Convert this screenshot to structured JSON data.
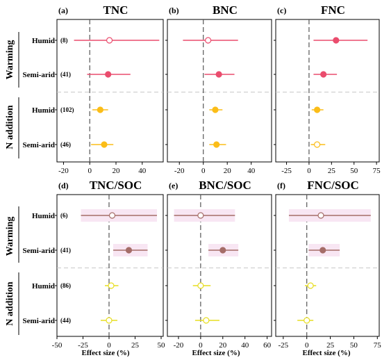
{
  "colors": {
    "warming": "#ea4c6d",
    "warming_ci": "#ea4c6d",
    "n_addition": "#fbbd18",
    "warming_soc": "#a56d68",
    "n_addition_soc": "#e7dd20",
    "shade_soc": "#f8e6f3",
    "divider": "#c8c8c8",
    "zero_line": "#555555"
  },
  "group_labels": [
    "Warming",
    "N addition"
  ],
  "row_labels": [
    "Humid",
    "Semi-arid",
    "Humid",
    "Semi-arid"
  ],
  "x_axis_title": "Effect size (%)",
  "chart_data": [
    {
      "id": "a",
      "letter": "(a)",
      "title": "TNC",
      "type": "forest",
      "xlim": [
        -25,
        56
      ],
      "xticks": [
        -20,
        0,
        20,
        40
      ],
      "n_labels": [
        "(8)",
        "(41)",
        "(102)",
        "(46)"
      ],
      "points": [
        {
          "group": "Warming",
          "climate": "Humid",
          "mean": 15,
          "lo": -12,
          "hi": 53,
          "filled": false
        },
        {
          "group": "Warming",
          "climate": "Semi-arid",
          "mean": 14,
          "lo": -2,
          "hi": 31,
          "filled": true
        },
        {
          "group": "N addition",
          "climate": "Humid",
          "mean": 8,
          "lo": 2,
          "hi": 14,
          "filled": true
        },
        {
          "group": "N addition",
          "climate": "Semi-arid",
          "mean": 11,
          "lo": 1,
          "hi": 18,
          "filled": true
        }
      ]
    },
    {
      "id": "b",
      "letter": "(b)",
      "title": "BNC",
      "type": "forest",
      "xlim": [
        -30,
        57
      ],
      "xticks": [
        -20,
        0,
        20,
        40
      ],
      "n_labels": [],
      "points": [
        {
          "group": "Warming",
          "climate": "Humid",
          "mean": 4,
          "lo": -17,
          "hi": 29,
          "filled": false
        },
        {
          "group": "Warming",
          "climate": "Semi-arid",
          "mean": 13,
          "lo": 1,
          "hi": 26,
          "filled": true
        },
        {
          "group": "N addition",
          "climate": "Humid",
          "mean": 10,
          "lo": 5,
          "hi": 16,
          "filled": true
        },
        {
          "group": "N addition",
          "climate": "Semi-arid",
          "mean": 11,
          "lo": 5,
          "hi": 19,
          "filled": true
        }
      ]
    },
    {
      "id": "c",
      "letter": "(c)",
      "title": "FNC",
      "type": "forest",
      "xlim": [
        -37,
        78
      ],
      "xticks": [
        -25,
        0,
        25,
        50,
        75
      ],
      "n_labels": [],
      "points": [
        {
          "group": "Warming",
          "climate": "Humid",
          "mean": 30,
          "lo": 5,
          "hi": 65,
          "filled": true
        },
        {
          "group": "Warming",
          "climate": "Semi-arid",
          "mean": 16,
          "lo": 5,
          "hi": 31,
          "filled": true
        },
        {
          "group": "N addition",
          "climate": "Humid",
          "mean": 9,
          "lo": 3,
          "hi": 16,
          "filled": true
        },
        {
          "group": "N addition",
          "climate": "Semi-arid",
          "mean": 9,
          "lo": 2,
          "hi": 18,
          "filled": false
        }
      ]
    },
    {
      "id": "d",
      "letter": "(d)",
      "title": "TNC/SOC",
      "type": "forest",
      "xlim": [
        -50,
        52
      ],
      "xticks": [
        -50,
        -25,
        0,
        25,
        50
      ],
      "n_labels": [
        "(6)",
        "(41)",
        "(86)",
        "(44)"
      ],
      "points": [
        {
          "group": "Warming",
          "climate": "Humid",
          "mean": 3,
          "lo": -27,
          "hi": 46,
          "filled": false,
          "shade": true
        },
        {
          "group": "Warming",
          "climate": "Semi-arid",
          "mean": 19,
          "lo": 4,
          "hi": 37,
          "filled": true,
          "shade": true
        },
        {
          "group": "N addition",
          "climate": "Humid",
          "mean": 2,
          "lo": -4,
          "hi": 9,
          "filled": false,
          "shade": false
        },
        {
          "group": "N addition",
          "climate": "Semi-arid",
          "mean": 0,
          "lo": -8,
          "hi": 8,
          "filled": false,
          "shade": false
        }
      ]
    },
    {
      "id": "e",
      "letter": "(e)",
      "title": "BNC/SOC",
      "type": "forest",
      "xlim": [
        -30,
        64
      ],
      "xticks": [
        -20,
        0,
        20,
        40,
        60
      ],
      "n_labels": [],
      "points": [
        {
          "group": "Warming",
          "climate": "Humid",
          "mean": 0,
          "lo": -24,
          "hi": 31,
          "filled": false,
          "shade": true
        },
        {
          "group": "Warming",
          "climate": "Semi-arid",
          "mean": 20,
          "lo": 7,
          "hi": 34,
          "filled": true,
          "shade": true
        },
        {
          "group": "N addition",
          "climate": "Humid",
          "mean": 0,
          "lo": -7,
          "hi": 9,
          "filled": false,
          "shade": false
        },
        {
          "group": "N addition",
          "climate": "Semi-arid",
          "mean": 5,
          "lo": -5,
          "hi": 17,
          "filled": false,
          "shade": false
        }
      ]
    },
    {
      "id": "f",
      "letter": "(f)",
      "title": "FNC/SOC",
      "type": "forest",
      "xlim": [
        -33,
        77
      ],
      "xticks": [
        -25,
        0,
        25,
        50,
        75
      ],
      "n_labels": [],
      "points": [
        {
          "group": "Warming",
          "climate": "Humid",
          "mean": 15,
          "lo": -19,
          "hi": 68,
          "filled": false,
          "shade": true
        },
        {
          "group": "Warming",
          "climate": "Semi-arid",
          "mean": 17,
          "lo": 2,
          "hi": 35,
          "filled": true,
          "shade": true
        },
        {
          "group": "N addition",
          "climate": "Humid",
          "mean": 4,
          "lo": -2,
          "hi": 10,
          "filled": false,
          "shade": false
        },
        {
          "group": "N addition",
          "climate": "Semi-arid",
          "mean": 0,
          "lo": -10,
          "hi": 7,
          "filled": false,
          "shade": false
        }
      ]
    }
  ]
}
